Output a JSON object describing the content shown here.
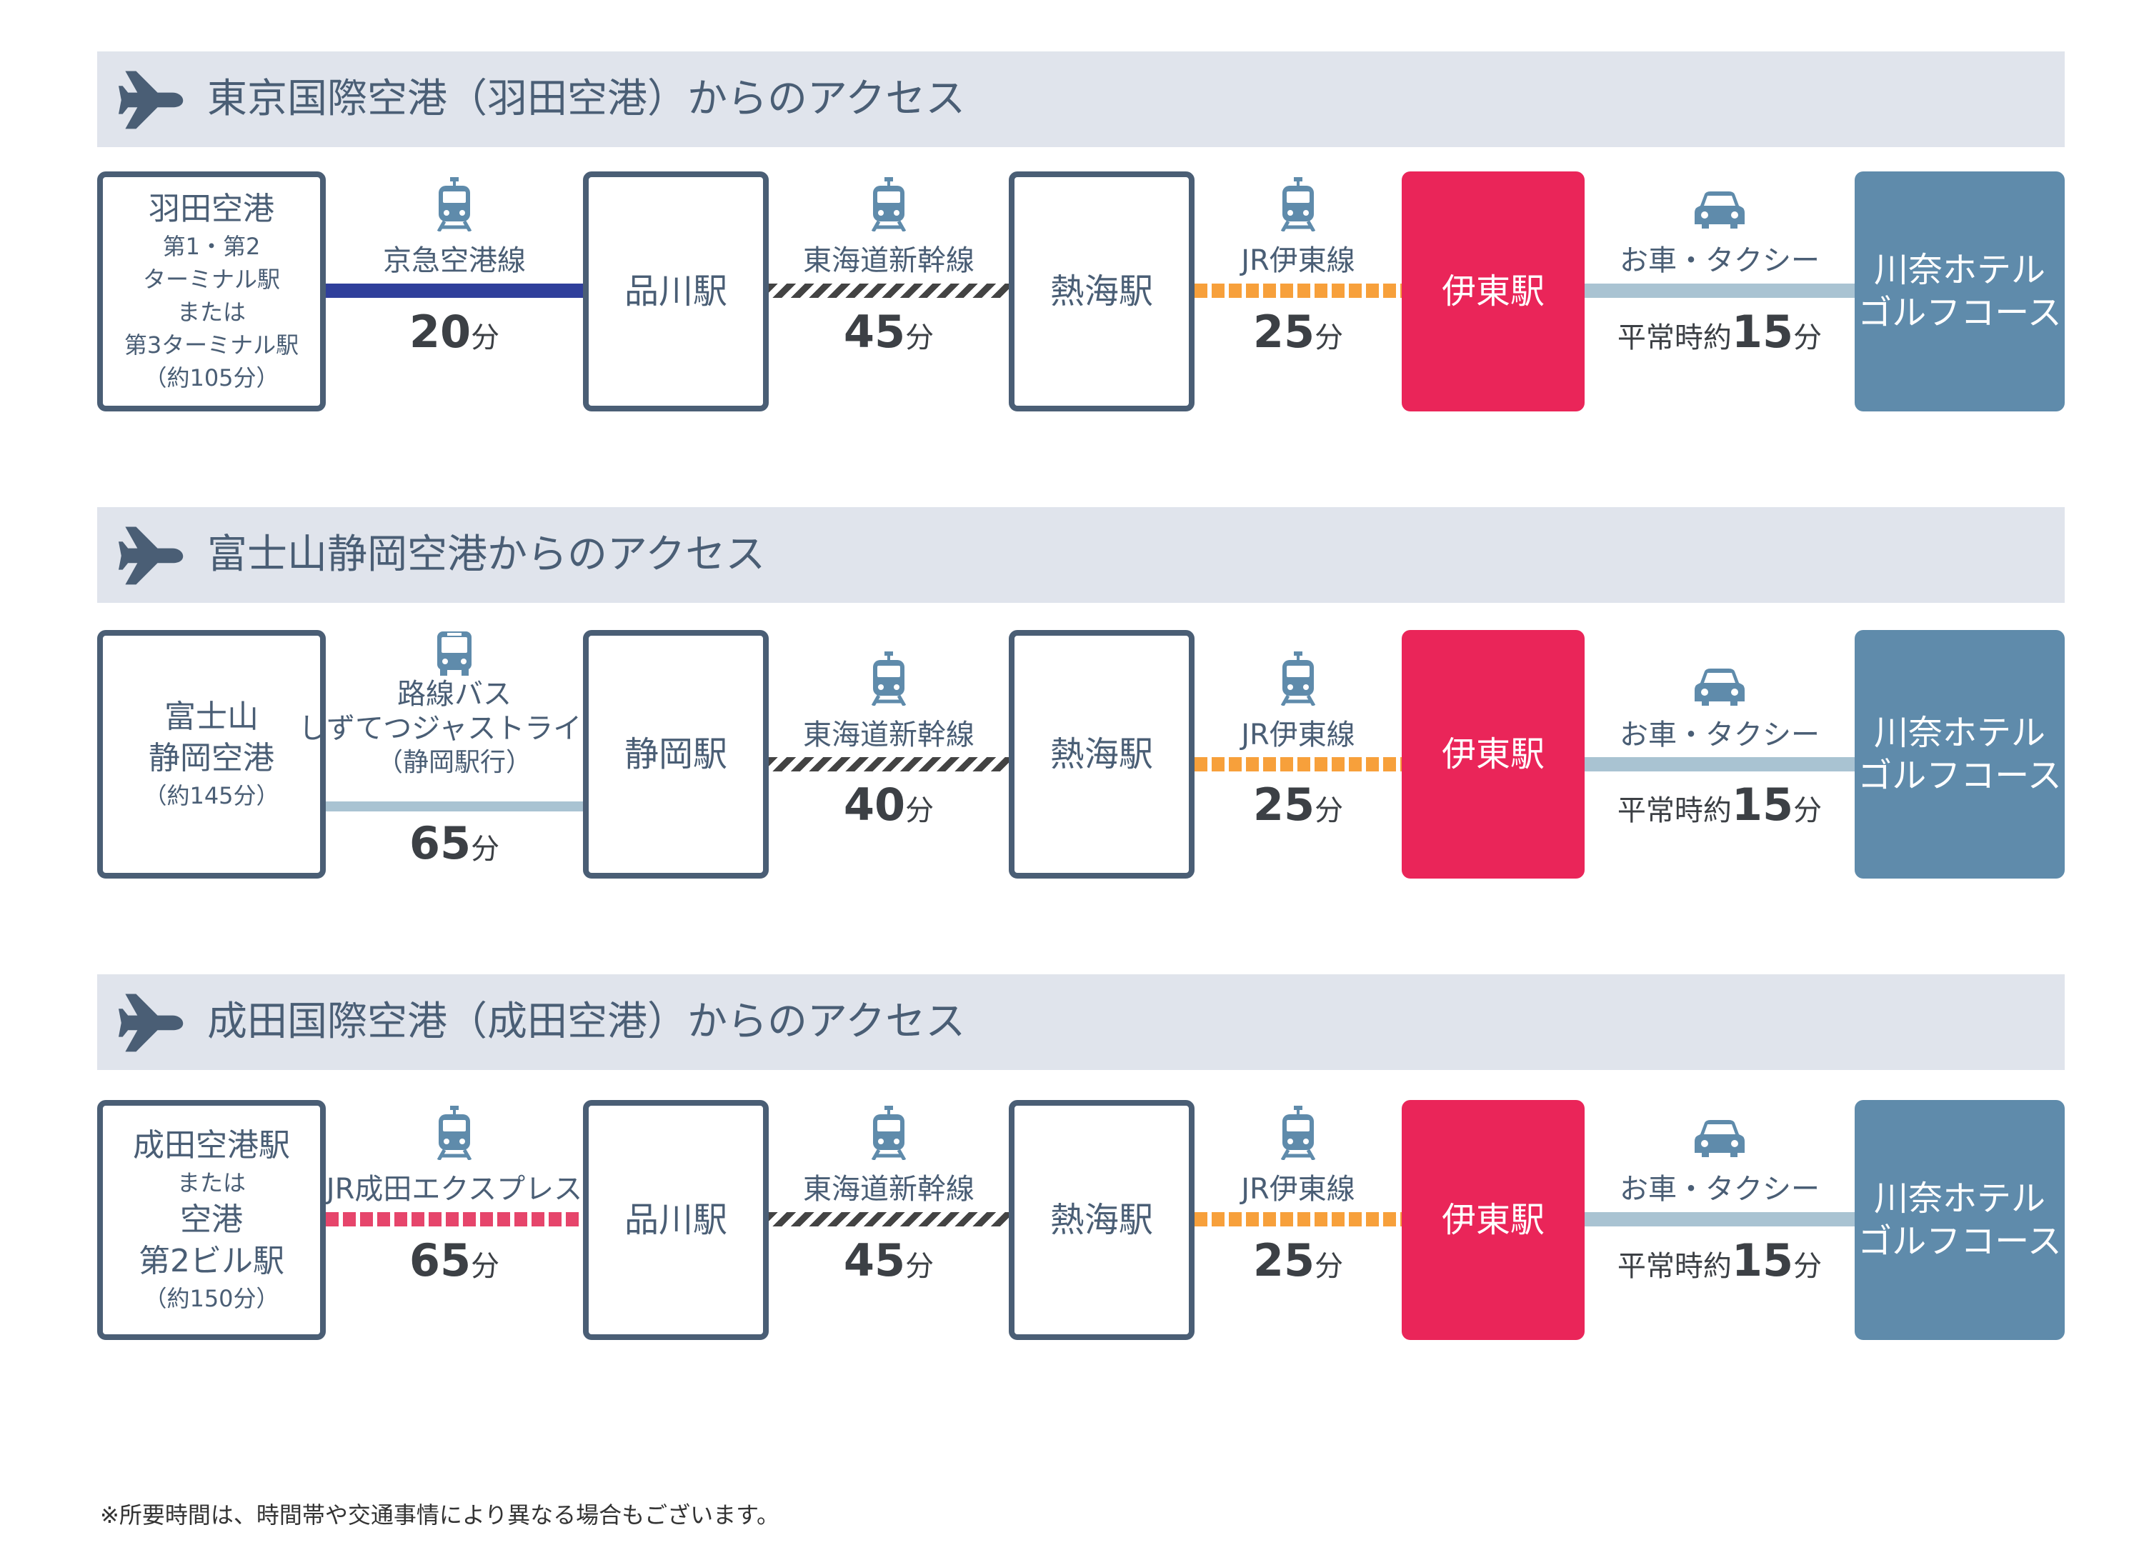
{
  "sections": [
    {
      "title": "東京国際空港（羽田空港）からのアクセス",
      "origin": [
        "羽田空港",
        "第1・第2",
        "ターミナル駅",
        "または",
        "第3ターミナル駅",
        "（約105分）"
      ],
      "legs": [
        {
          "icon": "train-icon",
          "line": "京急空港線",
          "time_num": "20",
          "time_unit": "分"
        },
        {
          "icon": "train-icon",
          "line": "東海道新幹線",
          "time_num": "45",
          "time_unit": "分"
        },
        {
          "icon": "train-icon",
          "line": "JR伊東線",
          "time_num": "25",
          "time_unit": "分"
        },
        {
          "icon": "car-icon",
          "line": "お車・タクシー",
          "time_prefix": "平常時約",
          "time_num": "15",
          "time_unit": "分"
        }
      ],
      "stations": [
        "品川駅",
        "熱海駅",
        "伊東駅"
      ],
      "destination": [
        "川奈ホテル",
        "ゴルフコース"
      ]
    },
    {
      "title": "富士山静岡空港からのアクセス",
      "origin": [
        "富士山",
        "静岡空港",
        "（約145分）"
      ],
      "legs": [
        {
          "icon": "bus-icon",
          "line": "路線バス",
          "line2": "しずてつジャストライン",
          "line3": "（静岡駅行）",
          "time_num": "65",
          "time_unit": "分"
        },
        {
          "icon": "train-icon",
          "line": "東海道新幹線",
          "time_num": "40",
          "time_unit": "分"
        },
        {
          "icon": "train-icon",
          "line": "JR伊東線",
          "time_num": "25",
          "time_unit": "分"
        },
        {
          "icon": "car-icon",
          "line": "お車・タクシー",
          "time_prefix": "平常時約",
          "time_num": "15",
          "time_unit": "分"
        }
      ],
      "stations": [
        "静岡駅",
        "熱海駅",
        "伊東駅"
      ],
      "destination": [
        "川奈ホテル",
        "ゴルフコース"
      ]
    },
    {
      "title": "成田国際空港（成田空港）からのアクセス",
      "origin": [
        "成田空港駅",
        "または",
        "空港",
        "第2ビル駅",
        "（約150分）"
      ],
      "legs": [
        {
          "icon": "train-icon",
          "line": "JR成田エクスプレス",
          "time_num": "65",
          "time_unit": "分"
        },
        {
          "icon": "train-icon",
          "line": "東海道新幹線",
          "time_num": "45",
          "time_unit": "分"
        },
        {
          "icon": "train-icon",
          "line": "JR伊東線",
          "time_num": "25",
          "time_unit": "分"
        },
        {
          "icon": "car-icon",
          "line": "お車・タクシー",
          "time_prefix": "平常時約",
          "time_num": "15",
          "time_unit": "分"
        }
      ],
      "stations": [
        "品川駅",
        "熱海駅",
        "伊東駅"
      ],
      "destination": [
        "川奈ホテル",
        "ゴルフコース"
      ]
    }
  ],
  "colors": {
    "node_border": "#4a5e75",
    "ito_station": "#ea2559",
    "destination": "#5f8bab",
    "header_bg": "#e0e4ec",
    "keikyu": "#2f3f9b",
    "shinkansen": "#434343",
    "jr_ito": "#f7a03b",
    "narita_express": "#e6456b",
    "road": "#a9c3d2"
  },
  "note": "※所要時間は、時間帯や交通事情により異なる場合もございます。"
}
